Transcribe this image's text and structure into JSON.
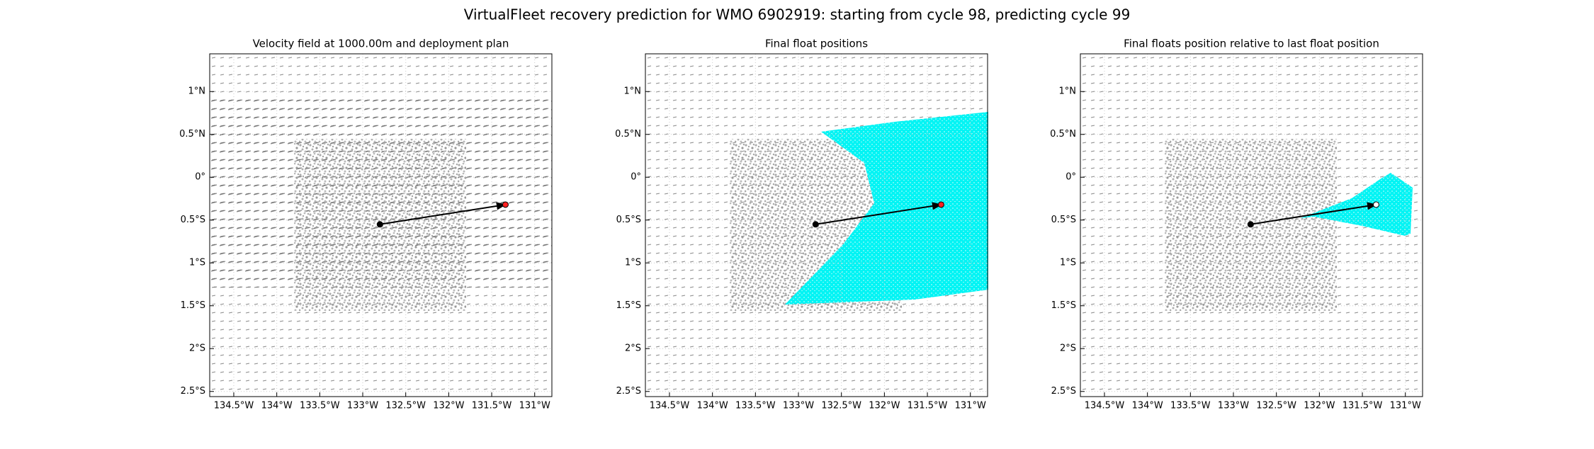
{
  "title": "VirtualFleet recovery prediction for WMO 6902919: starting from cycle 98, predicting cycle 99",
  "chart_data": [
    {
      "type": "scatter",
      "title": "Velocity field at 1000.00m and deployment plan",
      "x": [
        -132.8,
        -131.34
      ],
      "values": [
        -0.55,
        -0.32
      ],
      "colors": [
        "#000000",
        "#ff2020"
      ],
      "xlim": [
        -134.78,
        -130.8
      ],
      "ylim": [
        -2.56,
        1.44
      ],
      "grid": true,
      "xticks": [
        {
          "value": -134.5,
          "label": "134.5°W"
        },
        {
          "value": -134,
          "label": "134°W"
        },
        {
          "value": -133.5,
          "label": "133.5°W"
        },
        {
          "value": -133,
          "label": "133°W"
        },
        {
          "value": -132.5,
          "label": "132.5°W"
        },
        {
          "value": -132,
          "label": "132°W"
        },
        {
          "value": -131.5,
          "label": "131.5°W"
        },
        {
          "value": -131,
          "label": "131°W"
        }
      ],
      "yticks": [
        {
          "value": 1,
          "label": "1°N"
        },
        {
          "value": 0.5,
          "label": "0.5°N"
        },
        {
          "value": 0,
          "label": "0°"
        },
        {
          "value": -0.5,
          "label": "0.5°S"
        },
        {
          "value": -1,
          "label": "1°S"
        },
        {
          "value": -1.5,
          "label": "1.5°S"
        },
        {
          "value": -2,
          "label": "2°S"
        },
        {
          "value": -2.5,
          "label": "2.5°S"
        }
      ]
    },
    {
      "type": "scatter",
      "title": "Final float positions",
      "x": [
        -132.8,
        -131.34
      ],
      "values": [
        -0.55,
        -0.32
      ],
      "colors": [
        "#000000",
        "#ff2020"
      ],
      "xlim": [
        -134.78,
        -130.8
      ],
      "ylim": [
        -2.56,
        1.44
      ],
      "grid": true,
      "xticks": [
        {
          "value": -134.5,
          "label": "134.5°W"
        },
        {
          "value": -134,
          "label": "134°W"
        },
        {
          "value": -133.5,
          "label": "133.5°W"
        },
        {
          "value": -133,
          "label": "133°W"
        },
        {
          "value": -132.5,
          "label": "132.5°W"
        },
        {
          "value": -132,
          "label": "132°W"
        },
        {
          "value": -131.5,
          "label": "131.5°W"
        },
        {
          "value": -131,
          "label": "131°W"
        }
      ],
      "yticks": [
        {
          "value": 1,
          "label": "1°N"
        },
        {
          "value": 0.5,
          "label": "0.5°N"
        },
        {
          "value": 0,
          "label": "0°"
        },
        {
          "value": -0.5,
          "label": "0.5°S"
        },
        {
          "value": -1,
          "label": "1°S"
        },
        {
          "value": -1.5,
          "label": "1.5°S"
        },
        {
          "value": -2,
          "label": "2°S"
        },
        {
          "value": -2.5,
          "label": "2.5°S"
        }
      ]
    },
    {
      "type": "scatter",
      "title": "Final floats position relative to last float position",
      "x": [
        -132.8,
        -131.34
      ],
      "values": [
        -0.55,
        -0.32
      ],
      "colors": [
        "#000000",
        "#ffffff"
      ],
      "xlim": [
        -134.78,
        -130.8
      ],
      "ylim": [
        -2.56,
        1.44
      ],
      "grid": true,
      "xticks": [
        {
          "value": -134.5,
          "label": "134.5°W"
        },
        {
          "value": -134,
          "label": "134°W"
        },
        {
          "value": -133.5,
          "label": "133.5°W"
        },
        {
          "value": -133,
          "label": "133°W"
        },
        {
          "value": -132.5,
          "label": "132.5°W"
        },
        {
          "value": -132,
          "label": "132°W"
        },
        {
          "value": -131.5,
          "label": "131.5°W"
        },
        {
          "value": -131,
          "label": "131°W"
        }
      ],
      "yticks": [
        {
          "value": 1,
          "label": "1°N"
        },
        {
          "value": 0.5,
          "label": "0.5°N"
        },
        {
          "value": 0,
          "label": "0°"
        },
        {
          "value": -0.5,
          "label": "0.5°S"
        },
        {
          "value": -1,
          "label": "1°S"
        },
        {
          "value": -1.5,
          "label": "1.5°S"
        },
        {
          "value": -2,
          "label": "2°S"
        },
        {
          "value": -2.5,
          "label": "2.5°S"
        }
      ]
    }
  ]
}
